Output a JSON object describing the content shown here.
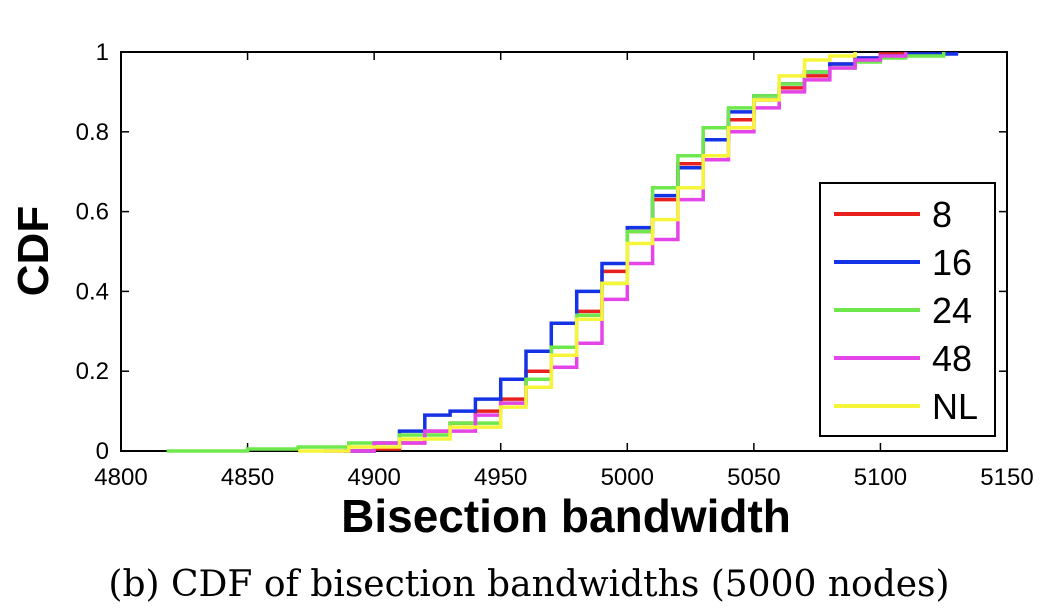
{
  "chart_data": {
    "type": "line",
    "title": "",
    "caption": "(b) CDF of bisection bandwidths (5000 nodes)",
    "xlabel": "Bisection bandwidth",
    "ylabel": "CDF",
    "xlim": [
      4800,
      5150
    ],
    "ylim": [
      0,
      1
    ],
    "xticks": [
      4800,
      4850,
      4900,
      4950,
      5000,
      5050,
      5100,
      5150
    ],
    "yticks": [
      0,
      0.2,
      0.4,
      0.6,
      0.8,
      1
    ],
    "ytick_labels": [
      "0",
      "0.2",
      "0.4",
      "0.6",
      "0.8",
      "1"
    ],
    "grid": false,
    "legend_position": "lower-right",
    "series": [
      {
        "name": "8",
        "color": "#e8211f",
        "points": [
          [
            4888,
            0.0
          ],
          [
            4900,
            0.005
          ],
          [
            4910,
            0.02
          ],
          [
            4920,
            0.05
          ],
          [
            4930,
            0.07
          ],
          [
            4940,
            0.1
          ],
          [
            4950,
            0.13
          ],
          [
            4960,
            0.2
          ],
          [
            4970,
            0.26
          ],
          [
            4980,
            0.35
          ],
          [
            4990,
            0.45
          ],
          [
            5000,
            0.55
          ],
          [
            5010,
            0.63
          ],
          [
            5020,
            0.72
          ],
          [
            5030,
            0.78
          ],
          [
            5040,
            0.83
          ],
          [
            5050,
            0.88
          ],
          [
            5060,
            0.91
          ],
          [
            5070,
            0.94
          ],
          [
            5080,
            0.97
          ],
          [
            5090,
            0.985
          ],
          [
            5100,
            0.995
          ],
          [
            5110,
            1.0
          ]
        ]
      },
      {
        "name": "16",
        "color": "#1432e6",
        "points": [
          [
            4888,
            0.0
          ],
          [
            4900,
            0.02
          ],
          [
            4910,
            0.05
          ],
          [
            4920,
            0.09
          ],
          [
            4930,
            0.1
          ],
          [
            4940,
            0.13
          ],
          [
            4950,
            0.18
          ],
          [
            4960,
            0.25
          ],
          [
            4970,
            0.32
          ],
          [
            4980,
            0.4
          ],
          [
            4990,
            0.47
          ],
          [
            5000,
            0.56
          ],
          [
            5010,
            0.64
          ],
          [
            5020,
            0.71
          ],
          [
            5030,
            0.78
          ],
          [
            5040,
            0.85
          ],
          [
            5050,
            0.89
          ],
          [
            5060,
            0.92
          ],
          [
            5070,
            0.95
          ],
          [
            5080,
            0.97
          ],
          [
            5090,
            0.985
          ],
          [
            5100,
            0.99
          ],
          [
            5110,
            0.995
          ],
          [
            5130,
            1.0
          ]
        ]
      },
      {
        "name": "24",
        "color": "#6ee84c",
        "points": [
          [
            4818,
            0.0
          ],
          [
            4850,
            0.005
          ],
          [
            4870,
            0.01
          ],
          [
            4890,
            0.02
          ],
          [
            4910,
            0.04
          ],
          [
            4930,
            0.07
          ],
          [
            4950,
            0.12
          ],
          [
            4960,
            0.18
          ],
          [
            4970,
            0.26
          ],
          [
            4980,
            0.34
          ],
          [
            4990,
            0.42
          ],
          [
            5000,
            0.55
          ],
          [
            5010,
            0.66
          ],
          [
            5020,
            0.74
          ],
          [
            5030,
            0.81
          ],
          [
            5040,
            0.86
          ],
          [
            5050,
            0.89
          ],
          [
            5060,
            0.92
          ],
          [
            5070,
            0.95
          ],
          [
            5080,
            0.96
          ],
          [
            5090,
            0.975
          ],
          [
            5100,
            0.985
          ],
          [
            5110,
            0.99
          ],
          [
            5125,
            1.0
          ]
        ]
      },
      {
        "name": "48",
        "color": "#e445e8",
        "points": [
          [
            4880,
            0.0
          ],
          [
            4900,
            0.02
          ],
          [
            4920,
            0.05
          ],
          [
            4940,
            0.09
          ],
          [
            4950,
            0.12
          ],
          [
            4960,
            0.16
          ],
          [
            4970,
            0.21
          ],
          [
            4980,
            0.27
          ],
          [
            4990,
            0.38
          ],
          [
            5000,
            0.47
          ],
          [
            5010,
            0.53
          ],
          [
            5020,
            0.63
          ],
          [
            5030,
            0.73
          ],
          [
            5040,
            0.8
          ],
          [
            5050,
            0.86
          ],
          [
            5060,
            0.9
          ],
          [
            5070,
            0.93
          ],
          [
            5080,
            0.96
          ],
          [
            5090,
            0.98
          ],
          [
            5100,
            0.99
          ],
          [
            5110,
            1.0
          ]
        ]
      },
      {
        "name": "NL",
        "color": "#f6f53a",
        "points": [
          [
            4870,
            0.0
          ],
          [
            4890,
            0.01
          ],
          [
            4910,
            0.03
          ],
          [
            4930,
            0.06
          ],
          [
            4950,
            0.11
          ],
          [
            4960,
            0.16
          ],
          [
            4970,
            0.24
          ],
          [
            4980,
            0.33
          ],
          [
            4990,
            0.42
          ],
          [
            5000,
            0.52
          ],
          [
            5010,
            0.58
          ],
          [
            5020,
            0.66
          ],
          [
            5030,
            0.74
          ],
          [
            5040,
            0.81
          ],
          [
            5050,
            0.88
          ],
          [
            5060,
            0.94
          ],
          [
            5070,
            0.98
          ],
          [
            5080,
            0.99
          ],
          [
            5090,
            1.0
          ]
        ]
      }
    ]
  }
}
